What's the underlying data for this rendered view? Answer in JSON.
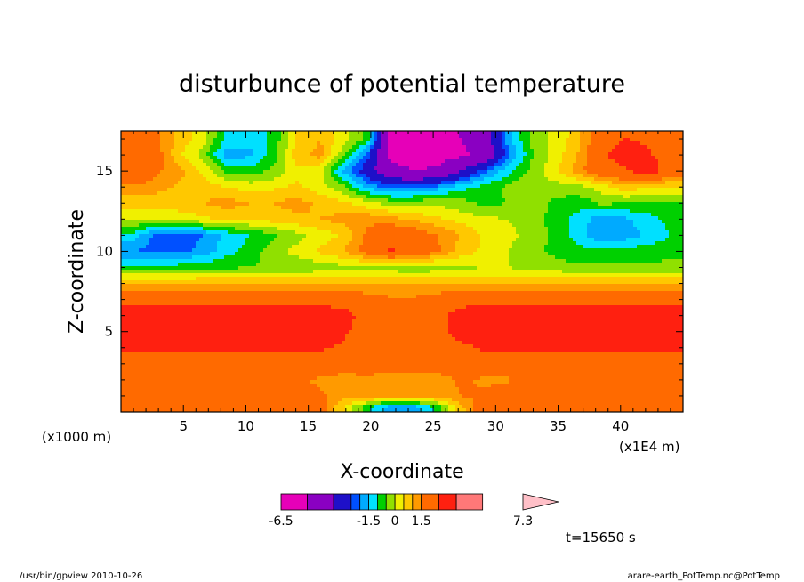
{
  "chart_data": {
    "type": "heatmap",
    "title": "disturbunce of potential temperature",
    "xlabel": "X-coordinate",
    "ylabel": "Z-coordinate",
    "x_unit": "(x1E4 m)",
    "y_unit": "(x1000 m)",
    "xlim": [
      0,
      45
    ],
    "ylim": [
      0,
      17.5
    ],
    "x_ticks": [
      5,
      10,
      15,
      20,
      25,
      30,
      35,
      40
    ],
    "y_ticks": [
      5,
      10,
      15
    ],
    "time_label": "t=15650 s",
    "colorbar": {
      "levels": [
        -6.5,
        -5.0,
        -3.5,
        -2.5,
        -2.0,
        -1.5,
        -1.0,
        -0.5,
        0,
        0.5,
        1.0,
        1.5,
        2.5,
        3.5,
        5.0,
        7.3
      ],
      "colors": [
        "#e600b8",
        "#8a00c2",
        "#1e10c8",
        "#0050ff",
        "#00aaff",
        "#00e0ff",
        "#00d000",
        "#90e000",
        "#f0f000",
        "#ffc800",
        "#ff9a00",
        "#ff6a00",
        "#ff2010",
        "#ff7878",
        "#ffc0c8"
      ],
      "labels": [
        "-6.5",
        "-1.5",
        "0",
        "1.5",
        "7.3"
      ]
    },
    "rows": [
      {
        "z": 17,
        "values": [
          1.6,
          1.7,
          0.8,
          0.3,
          -1.2,
          -1.4,
          -0.9,
          0.5,
          1.0,
          0.2,
          -0.6,
          -5.2,
          -5.5,
          -5.3,
          -5.0,
          -4.2,
          -1.8,
          -0.4,
          0.1,
          0.8,
          2.0,
          2.5,
          2.4,
          2.0
        ]
      },
      {
        "z": 16,
        "values": [
          1.8,
          1.8,
          0.6,
          -0.2,
          -1.8,
          -1.6,
          -0.8,
          0.8,
          1.2,
          -0.3,
          -2.2,
          -5.4,
          -5.6,
          -5.6,
          -5.2,
          -4.8,
          -2.2,
          -0.6,
          0.2,
          1.0,
          2.4,
          2.8,
          2.6,
          2.1
        ]
      },
      {
        "z": 15,
        "values": [
          2.5,
          1.6,
          1.2,
          0.4,
          -0.6,
          -0.8,
          -0.4,
          0.4,
          0.2,
          -1.6,
          -3.0,
          -4.5,
          -5.0,
          -4.8,
          -3.5,
          -2.2,
          -1.2,
          -0.4,
          0.4,
          1.2,
          2.2,
          2.4,
          3.0,
          2.0
        ]
      },
      {
        "z": 14,
        "values": [
          1.4,
          1.2,
          0.9,
          0.8,
          0.5,
          0.3,
          0.4,
          0.6,
          0.2,
          -0.4,
          -1.6,
          -2.2,
          -2.2,
          -1.8,
          -1.2,
          -0.8,
          -0.4,
          0.0,
          -0.2,
          -0.2,
          0.2,
          0.8,
          0.6,
          0.4
        ]
      },
      {
        "z": 13,
        "values": [
          0.7,
          0.7,
          0.8,
          1.0,
          1.2,
          1.0,
          1.0,
          1.2,
          0.9,
          0.6,
          0.2,
          -0.2,
          -0.2,
          -0.1,
          -0.3,
          -0.6,
          -0.5,
          -0.2,
          -0.6,
          -0.8,
          -0.4,
          -0.5,
          -0.6,
          -0.5
        ]
      },
      {
        "z": 12,
        "values": [
          0.1,
          0.0,
          0.2,
          0.4,
          0.6,
          0.6,
          0.7,
          0.9,
          1.0,
          1.2,
          1.4,
          1.2,
          0.9,
          0.6,
          0.3,
          0.1,
          0.0,
          -0.4,
          -0.6,
          -1.2,
          -1.8,
          -1.6,
          -1.2,
          -0.8
        ]
      },
      {
        "z": 11,
        "values": [
          -1.2,
          -2.2,
          -2.4,
          -2.0,
          -1.4,
          -1.0,
          -0.6,
          -0.2,
          0.2,
          0.6,
          1.6,
          2.2,
          2.0,
          1.5,
          1.0,
          0.4,
          0.2,
          -0.2,
          -0.6,
          -1.2,
          -2.0,
          -1.8,
          -1.4,
          -1.0
        ]
      },
      {
        "z": 10,
        "values": [
          -2.0,
          -2.2,
          -2.2,
          -1.8,
          -1.2,
          -0.8,
          -0.2,
          0.2,
          0.6,
          1.0,
          1.8,
          2.6,
          2.2,
          1.6,
          0.8,
          0.4,
          0.0,
          -0.4,
          -0.6,
          -0.8,
          -0.9,
          -0.8,
          -0.7,
          -0.6
        ]
      },
      {
        "z": 9,
        "values": [
          -0.8,
          -0.8,
          -0.7,
          -0.6,
          -0.6,
          -0.5,
          -0.4,
          -0.4,
          -0.3,
          -0.2,
          -0.2,
          -0.3,
          -0.4,
          -0.3,
          -0.1,
          0.0,
          0.0,
          -0.2,
          -0.3,
          -0.4,
          -0.4,
          -0.4,
          -0.4,
          -0.4
        ]
      },
      {
        "z": 8,
        "values": [
          1.0,
          1.0,
          1.0,
          1.0,
          1.0,
          1.0,
          1.0,
          1.0,
          1.0,
          1.0,
          1.0,
          1.0,
          1.0,
          1.0,
          1.0,
          1.0,
          1.0,
          1.0,
          1.0,
          1.0,
          1.0,
          1.0,
          1.0,
          1.0
        ]
      },
      {
        "z": 7,
        "values": [
          2.2,
          2.2,
          2.2,
          2.2,
          2.2,
          2.2,
          2.2,
          2.2,
          2.2,
          2.1,
          1.8,
          1.6,
          1.6,
          1.8,
          2.1,
          2.2,
          2.2,
          2.2,
          2.2,
          2.2,
          2.2,
          2.2,
          2.2,
          2.2
        ]
      },
      {
        "z": 6,
        "values": [
          3.0,
          3.0,
          3.0,
          3.0,
          3.0,
          3.0,
          3.0,
          3.0,
          3.0,
          2.8,
          2.2,
          2.0,
          2.0,
          2.2,
          2.9,
          3.0,
          3.0,
          3.0,
          3.0,
          3.0,
          3.0,
          3.0,
          3.0,
          3.0
        ]
      },
      {
        "z": 5,
        "values": [
          3.0,
          3.0,
          3.0,
          3.0,
          3.0,
          3.0,
          3.0,
          3.0,
          3.0,
          2.6,
          2.2,
          2.0,
          2.0,
          2.2,
          2.8,
          3.0,
          3.0,
          3.0,
          3.0,
          3.0,
          3.0,
          3.0,
          3.0,
          3.0
        ]
      },
      {
        "z": 4,
        "values": [
          2.6,
          2.6,
          2.6,
          2.6,
          2.6,
          2.6,
          2.6,
          2.6,
          2.6,
          2.4,
          2.0,
          2.0,
          2.0,
          2.0,
          2.3,
          2.6,
          2.6,
          2.6,
          2.6,
          2.6,
          2.6,
          2.6,
          2.6,
          2.6
        ]
      },
      {
        "z": 3,
        "values": [
          2.0,
          2.0,
          2.0,
          2.0,
          2.0,
          2.0,
          2.0,
          2.0,
          2.0,
          2.0,
          2.0,
          1.9,
          1.7,
          1.9,
          2.0,
          2.0,
          2.0,
          2.0,
          2.0,
          2.0,
          2.0,
          2.0,
          2.0,
          2.0
        ]
      },
      {
        "z": 2,
        "values": [
          2.0,
          2.0,
          2.0,
          2.0,
          1.6,
          1.6,
          1.6,
          1.6,
          1.4,
          1.2,
          1.3,
          1.2,
          1.4,
          1.2,
          1.6,
          1.4,
          1.4,
          2.0,
          2.0,
          2.0,
          2.0,
          2.0,
          2.0,
          2.0
        ]
      },
      {
        "z": 1,
        "values": [
          2.0,
          2.0,
          2.0,
          2.0,
          2.0,
          2.0,
          2.0,
          1.7,
          1.6,
          1.2,
          1.3,
          1.1,
          1.2,
          1.2,
          1.5,
          1.6,
          1.9,
          2.0,
          2.0,
          2.0,
          2.0,
          2.0,
          2.0,
          2.0
        ]
      },
      {
        "z": 0.3,
        "values": [
          2.0,
          2.0,
          2.0,
          2.0,
          2.0,
          2.0,
          2.0,
          2.0,
          2.0,
          0.5,
          -0.8,
          -1.8,
          -1.8,
          -0.8,
          0.8,
          2.0,
          2.0,
          2.0,
          2.0,
          2.0,
          2.0,
          2.0,
          2.0,
          2.0
        ]
      }
    ]
  },
  "footer": {
    "left": "/usr/bin/gpview  2010-10-26",
    "right": "arare-earth_PotTemp.nc@PotTemp"
  }
}
